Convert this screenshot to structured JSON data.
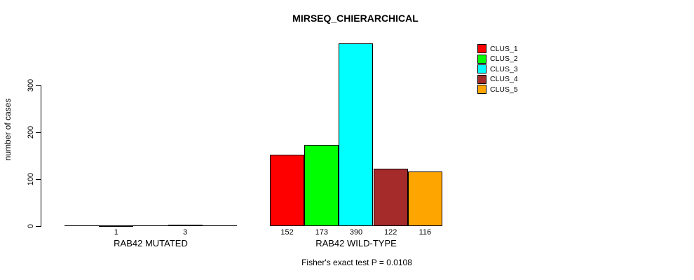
{
  "chart_data": {
    "type": "bar",
    "title": "MIRSEQ_CHIERARCHICAL",
    "ylabel": "number of cases",
    "xlabel": "",
    "yticks": [
      0,
      100,
      200,
      300
    ],
    "ylim": [
      0,
      390
    ],
    "grid": false,
    "legend_position": "right-outside",
    "show_zero_value_labels": false,
    "categories": [
      "RAB42 MUTATED",
      "RAB42 WILD-TYPE"
    ],
    "series": [
      {
        "name": "CLUS_1",
        "color": "#FF0000",
        "values": [
          0,
          152
        ]
      },
      {
        "name": "CLUS_2",
        "color": "#00FF00",
        "values": [
          1,
          173
        ]
      },
      {
        "name": "CLUS_3",
        "color": "#00FFFF",
        "values": [
          0,
          390
        ]
      },
      {
        "name": "CLUS_4",
        "color": "#A52A2A",
        "values": [
          3,
          122
        ]
      },
      {
        "name": "CLUS_5",
        "color": "#FFA500",
        "values": [
          0,
          116
        ]
      }
    ],
    "bar_value_labels": {
      "RAB42 MUTATED": [
        "",
        "1",
        "",
        "3",
        ""
      ],
      "RAB42 WILD-TYPE": [
        "152",
        "173",
        "390",
        "122",
        "116"
      ]
    },
    "footnote": "Fisher's exact test P = 0.0108",
    "axis_color": "#000000",
    "bar_border_color": "#000000"
  }
}
